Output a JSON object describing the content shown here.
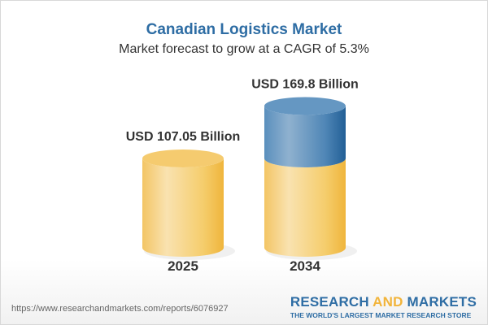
{
  "header": {
    "title": "Canadian Logistics Market",
    "subtitle": "Market forecast to grow at a CAGR of 5.3%"
  },
  "chart_data": {
    "type": "bar",
    "style": "3d-cylinder",
    "categories": [
      "2025",
      "2034"
    ],
    "values": [
      107.05,
      169.8
    ],
    "data_labels": [
      "USD 107.05 Billion",
      "USD 169.8 Billion"
    ],
    "unit": "USD Billion",
    "cagr": "5.3%",
    "colors": {
      "base": "#f2c04e",
      "growth": "#3d78aa"
    }
  },
  "footer": {
    "url": "https://www.researchandmarkets.com/reports/6076927",
    "logo_part1": "RESEARCH ",
    "logo_part2": "AND",
    "logo_part3": " MARKETS",
    "tagline": "THE WORLD'S LARGEST MARKET RESEARCH STORE"
  }
}
